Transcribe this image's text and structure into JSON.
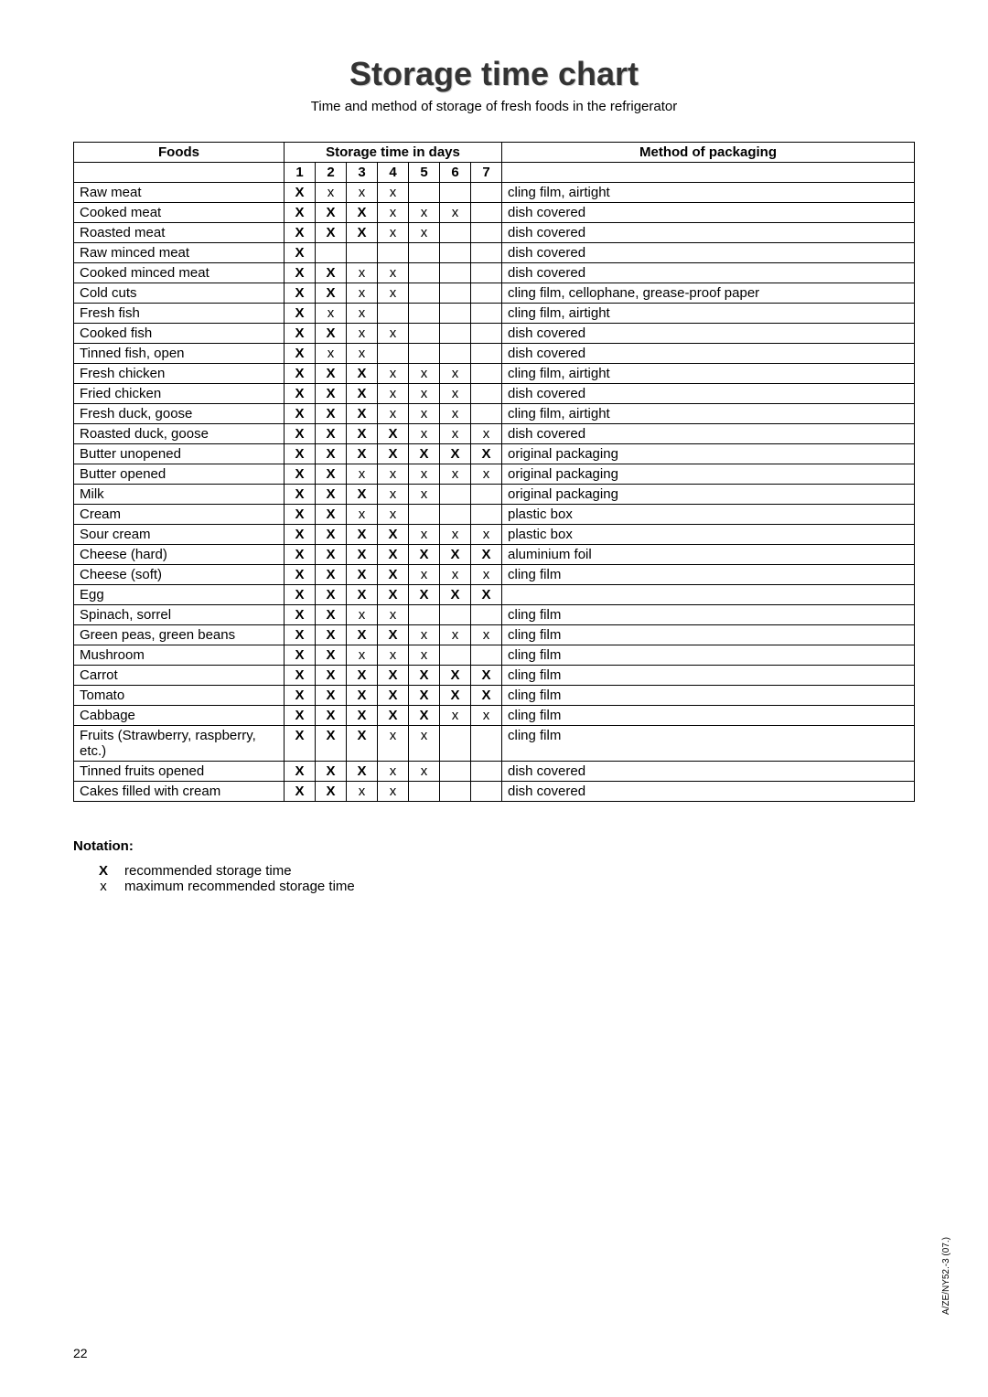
{
  "title": "Storage time chart",
  "subtitle": "Time and method of storage of fresh foods in the refrigerator",
  "headers": {
    "foods": "Foods",
    "storage_time": "Storage time in days",
    "method": "Method of packaging",
    "days": [
      "1",
      "2",
      "3",
      "4",
      "5",
      "6",
      "7"
    ]
  },
  "rows": [
    {
      "food": "Raw meat",
      "days": [
        "X",
        "x",
        "x",
        "x",
        "",
        "",
        ""
      ],
      "method": "cling film, airtight"
    },
    {
      "food": "Cooked meat",
      "days": [
        "X",
        "X",
        "X",
        "x",
        "x",
        "x",
        ""
      ],
      "method": "dish covered"
    },
    {
      "food": "Roasted meat",
      "days": [
        "X",
        "X",
        "X",
        "x",
        "x",
        "",
        ""
      ],
      "method": "dish covered"
    },
    {
      "food": "Raw minced meat",
      "days": [
        "X",
        "",
        "",
        "",
        "",
        "",
        ""
      ],
      "method": "dish covered"
    },
    {
      "food": "Cooked minced meat",
      "days": [
        "X",
        "X",
        "x",
        "x",
        "",
        "",
        ""
      ],
      "method": "dish covered"
    },
    {
      "food": "Cold cuts",
      "days": [
        "X",
        "X",
        "x",
        "x",
        "",
        "",
        ""
      ],
      "method": "cling film, cellophane, grease-proof paper"
    },
    {
      "food": "Fresh fish",
      "days": [
        "X",
        "x",
        "x",
        "",
        "",
        "",
        ""
      ],
      "method": "cling film, airtight"
    },
    {
      "food": "Cooked fish",
      "days": [
        "X",
        "X",
        "x",
        "x",
        "",
        "",
        ""
      ],
      "method": "dish covered"
    },
    {
      "food": "Tinned fish, open",
      "days": [
        "X",
        "x",
        "x",
        "",
        "",
        "",
        ""
      ],
      "method": "dish covered"
    },
    {
      "food": "Fresh chicken",
      "days": [
        "X",
        "X",
        "X",
        "x",
        "x",
        "x",
        ""
      ],
      "method": "cling film, airtight"
    },
    {
      "food": "Fried chicken",
      "days": [
        "X",
        "X",
        "X",
        "x",
        "x",
        "x",
        ""
      ],
      "method": "dish covered"
    },
    {
      "food": "Fresh duck, goose",
      "days": [
        "X",
        "X",
        "X",
        "x",
        "x",
        "x",
        ""
      ],
      "method": "cling film, airtight"
    },
    {
      "food": "Roasted duck, goose",
      "days": [
        "X",
        "X",
        "X",
        "X",
        "x",
        "x",
        "x"
      ],
      "method": "dish covered"
    },
    {
      "food": "Butter unopened",
      "days": [
        "X",
        "X",
        "X",
        "X",
        "X",
        "X",
        "X"
      ],
      "method": "original packaging"
    },
    {
      "food": "Butter opened",
      "days": [
        "X",
        "X",
        "x",
        "x",
        "x",
        "x",
        "x"
      ],
      "method": "original packaging"
    },
    {
      "food": "Milk",
      "days": [
        "X",
        "X",
        "X",
        "x",
        "x",
        "",
        ""
      ],
      "method": "original packaging"
    },
    {
      "food": "Cream",
      "days": [
        "X",
        "X",
        "x",
        "x",
        "",
        "",
        ""
      ],
      "method": "plastic box"
    },
    {
      "food": "Sour cream",
      "days": [
        "X",
        "X",
        "X",
        "X",
        "x",
        "x",
        "x"
      ],
      "method": "plastic box"
    },
    {
      "food": "Cheese (hard)",
      "days": [
        "X",
        "X",
        "X",
        "X",
        "X",
        "X",
        "X"
      ],
      "method": "aluminium foil"
    },
    {
      "food": "Cheese (soft)",
      "days": [
        "X",
        "X",
        "X",
        "X",
        "x",
        "x",
        "x"
      ],
      "method": "cling film"
    },
    {
      "food": "Egg",
      "days": [
        "X",
        "X",
        "X",
        "X",
        "X",
        "X",
        "X"
      ],
      "method": ""
    },
    {
      "food": "Spinach, sorrel",
      "days": [
        "X",
        "X",
        "x",
        "x",
        "",
        "",
        ""
      ],
      "method": "cling film"
    },
    {
      "food": "Green peas, green beans",
      "days": [
        "X",
        "X",
        "X",
        "X",
        "x",
        "x",
        "x"
      ],
      "method": "cling film"
    },
    {
      "food": "Mushroom",
      "days": [
        "X",
        "X",
        "x",
        "x",
        "x",
        "",
        ""
      ],
      "method": "cling film"
    },
    {
      "food": "Carrot",
      "days": [
        "X",
        "X",
        "X",
        "X",
        "X",
        "X",
        "X"
      ],
      "method": "cling film"
    },
    {
      "food": "Tomato",
      "days": [
        "X",
        "X",
        "X",
        "X",
        "X",
        "X",
        "X"
      ],
      "method": "cling film"
    },
    {
      "food": "Cabbage",
      "days": [
        "X",
        "X",
        "X",
        "X",
        "X",
        "x",
        "x"
      ],
      "method": "cling film"
    },
    {
      "food": "Fruits (Strawberry, raspberry, etc.)",
      "days": [
        "X",
        "X",
        "X",
        "x",
        "x",
        "",
        ""
      ],
      "method": "cling film"
    },
    {
      "food": "Tinned fruits opened",
      "days": [
        "X",
        "X",
        "X",
        "x",
        "x",
        "",
        ""
      ],
      "method": "dish covered"
    },
    {
      "food": "Cakes filled with cream",
      "days": [
        "X",
        "X",
        "x",
        "x",
        "",
        "",
        ""
      ],
      "method": "dish covered"
    }
  ],
  "notation": {
    "title": "Notation:",
    "items": [
      {
        "symbol": "X",
        "bold": true,
        "text": "recommended storage time"
      },
      {
        "symbol": "x",
        "bold": false,
        "text": "maximum recommended storage time"
      }
    ]
  },
  "footer_side": "A/ZE/NY52.-3 (07.)",
  "page_number": "22"
}
